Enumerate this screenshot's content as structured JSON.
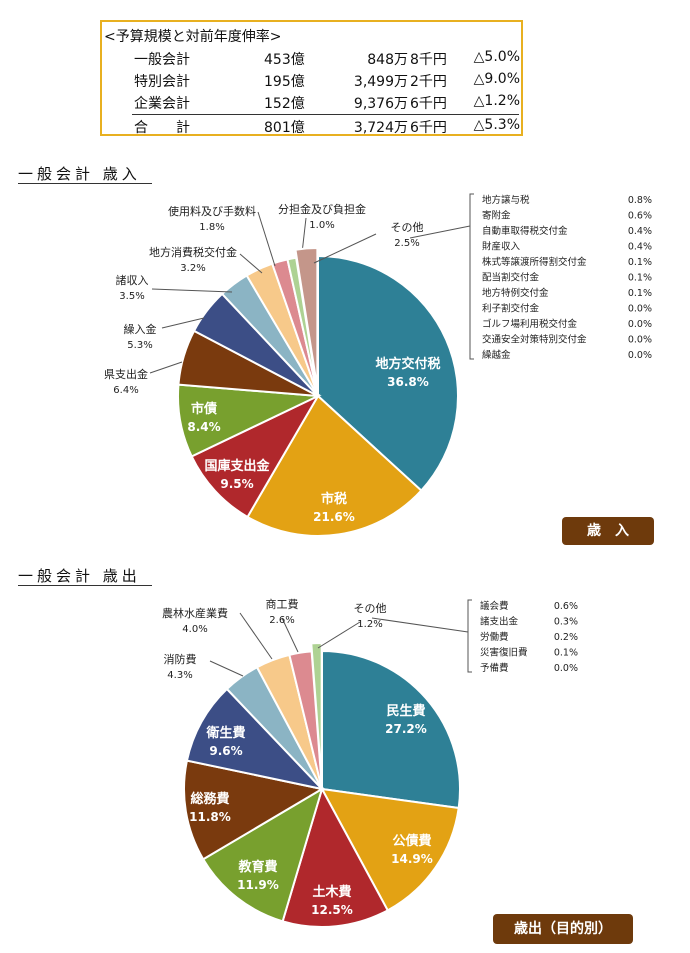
{
  "budget_table": {
    "title": "<予算規模と対前年度伸率>",
    "rows": [
      {
        "name": "一般会計",
        "oku": "453億",
        "man": "848万",
        "sen": "8千円",
        "rate": "△5.0%"
      },
      {
        "name": "特別会計",
        "oku": "195億",
        "man": "3,499万",
        "sen": "2千円",
        "rate": "△9.0%"
      },
      {
        "name": "企業会計",
        "oku": "152億",
        "man": "9,376万",
        "sen": "6千円",
        "rate": "△1.2%"
      },
      {
        "name": "合　　計",
        "oku": "801億",
        "man": "3,724万",
        "sen": "6千円",
        "rate": "△5.3%"
      }
    ]
  },
  "revenue_heading": "一般会計 歳入",
  "revenue_badge": "歳　入",
  "expenditure_heading": "一般会計 歳出",
  "expenditure_badge": "歳出（目的別）",
  "colors": {
    "teal": "#2e8096",
    "gold": "#e3a214",
    "red": "#b0282c",
    "green": "#78a02e",
    "brown": "#7a3a0e",
    "navy": "#3c4e86",
    "lightblue": "#8bb4c4",
    "peach": "#f7c98a",
    "pink": "#dc8a90",
    "lightgreen": "#aed293",
    "tan": "#c4968a",
    "badge": "#6e3a0c"
  },
  "chart_data": [
    {
      "type": "pie",
      "slices": [
        {
          "label": "地方交付税",
          "value": 36.8,
          "pct": "36.8%",
          "color": "#2e8096"
        },
        {
          "label": "市税",
          "value": 21.6,
          "pct": "21.6%",
          "color": "#e3a214"
        },
        {
          "label": "国庫支出金",
          "value": 9.5,
          "pct": "9.5%",
          "color": "#b0282c"
        },
        {
          "label": "市債",
          "value": 8.4,
          "pct": "8.4%",
          "color": "#78a02e"
        },
        {
          "label": "県支出金",
          "value": 6.4,
          "pct": "6.4%",
          "color": "#7a3a0e"
        },
        {
          "label": "繰入金",
          "value": 5.3,
          "pct": "5.3%",
          "color": "#3c4e86"
        },
        {
          "label": "諸収入",
          "value": 3.5,
          "pct": "3.5%",
          "color": "#8bb4c4"
        },
        {
          "label": "地方消費税交付金",
          "value": 3.2,
          "pct": "3.2%",
          "color": "#f7c98a"
        },
        {
          "label": "使用料及び手数料",
          "value": 1.8,
          "pct": "1.8%",
          "color": "#dc8a90"
        },
        {
          "label": "分担金及び負担金",
          "value": 1.0,
          "pct": "1.0%",
          "color": "#aed293"
        },
        {
          "label": "その他",
          "value": 2.5,
          "pct": "2.5%",
          "color": "#c4968a"
        }
      ],
      "other_breakdown": [
        {
          "label": "地方譲与税",
          "pct": "0.8%"
        },
        {
          "label": "寄附金",
          "pct": "0.6%"
        },
        {
          "label": "自動車取得税交付金",
          "pct": "0.4%"
        },
        {
          "label": "財産収入",
          "pct": "0.4%"
        },
        {
          "label": "株式等譲渡所得割交付金",
          "pct": "0.1%"
        },
        {
          "label": "配当割交付金",
          "pct": "0.1%"
        },
        {
          "label": "地方特例交付金",
          "pct": "0.1%"
        },
        {
          "label": "利子割交付金",
          "pct": "0.0%"
        },
        {
          "label": "ゴルフ場利用税交付金",
          "pct": "0.0%"
        },
        {
          "label": "交通安全対策特別交付金",
          "pct": "0.0%"
        },
        {
          "label": "繰越金",
          "pct": "0.0%"
        }
      ]
    },
    {
      "type": "pie",
      "slices": [
        {
          "label": "民生費",
          "value": 27.2,
          "pct": "27.2%",
          "color": "#2e8096"
        },
        {
          "label": "公債費",
          "value": 14.9,
          "pct": "14.9%",
          "color": "#e3a214"
        },
        {
          "label": "土木費",
          "value": 12.5,
          "pct": "12.5%",
          "color": "#b0282c"
        },
        {
          "label": "教育費",
          "value": 11.9,
          "pct": "11.9%",
          "color": "#78a02e"
        },
        {
          "label": "総務費",
          "value": 11.8,
          "pct": "11.8%",
          "color": "#7a3a0e"
        },
        {
          "label": "衛生費",
          "value": 9.6,
          "pct": "9.6%",
          "color": "#3c4e86"
        },
        {
          "label": "消防費",
          "value": 4.3,
          "pct": "4.3%",
          "color": "#8bb4c4"
        },
        {
          "label": "農林水産業費",
          "value": 4.0,
          "pct": "4.0%",
          "color": "#f7c98a"
        },
        {
          "label": "商工費",
          "value": 2.6,
          "pct": "2.6%",
          "color": "#dc8a90"
        },
        {
          "label": "その他",
          "value": 1.2,
          "pct": "1.2%",
          "color": "#aed293"
        }
      ],
      "other_breakdown": [
        {
          "label": "議会費",
          "pct": "0.6%"
        },
        {
          "label": "諸支出金",
          "pct": "0.3%"
        },
        {
          "label": "労働費",
          "pct": "0.2%"
        },
        {
          "label": "災害復旧費",
          "pct": "0.1%"
        },
        {
          "label": "予備費",
          "pct": "0.0%"
        }
      ]
    }
  ]
}
